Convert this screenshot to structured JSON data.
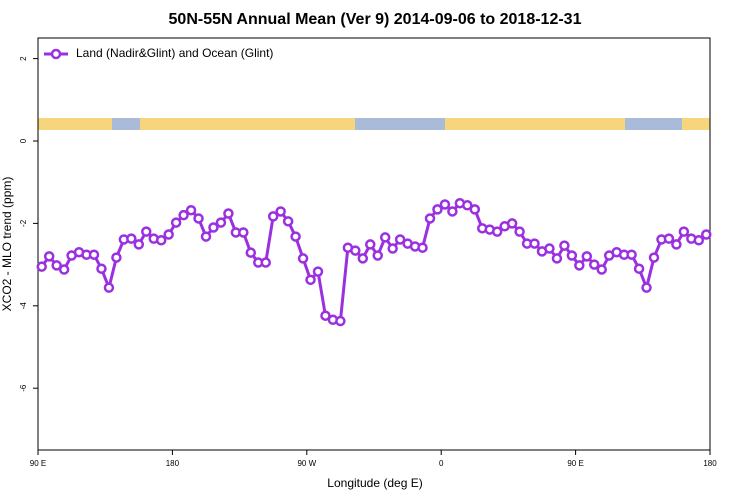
{
  "chart_data": {
    "type": "line",
    "title": "50N-55N Annual Mean (Ver 9)   2014-09-06 to 2018-12-31",
    "x_label": "Longitude (deg E)",
    "y_label": "XCO2 - MLO trend (ppm)",
    "xlim": [
      90,
      540
    ],
    "xticks": [
      {
        "value": 90,
        "label": "90 E"
      },
      {
        "value": 180,
        "label": "180"
      },
      {
        "value": 270,
        "label": "90 W"
      },
      {
        "value": 360,
        "label": "0"
      },
      {
        "value": 450,
        "label": "90 E"
      },
      {
        "value": 540,
        "label": "180"
      }
    ],
    "ylim": [
      -7.5,
      2.5
    ],
    "yticks": [
      -6,
      -4,
      -2,
      0,
      2
    ],
    "legend": "top-left",
    "x": [
      92.5,
      97.5,
      102.5,
      107.5,
      112.5,
      117.5,
      122.5,
      127.5,
      132.5,
      137.5,
      142.5,
      147.5,
      152.5,
      157.5,
      162.5,
      167.5,
      172.5,
      177.5,
      182.5,
      187.5,
      192.5,
      197.5,
      202.5,
      207.5,
      212.5,
      217.5,
      222.5,
      227.5,
      232.5,
      237.5,
      242.5,
      247.5,
      252.5,
      257.5,
      262.5,
      267.5,
      272.5,
      277.5,
      282.5,
      287.5,
      292.5,
      297.5,
      302.5,
      307.5,
      312.5,
      317.5,
      322.5,
      327.5,
      332.5,
      337.5,
      342.5,
      347.5,
      352.5,
      357.5,
      362.5,
      367.5,
      372.5,
      377.5,
      382.5,
      387.5,
      392.5,
      397.5,
      402.5,
      407.5,
      412.5,
      417.5,
      422.5,
      427.5,
      432.5,
      437.5,
      442.5,
      447.5,
      452.5,
      457.5,
      462.5,
      467.5,
      472.5,
      477.5,
      482.5,
      487.5,
      492.5,
      497.5,
      502.5,
      507.5,
      512.5,
      517.5,
      522.5,
      527.5,
      532.5,
      537.5
    ],
    "series": [
      {
        "name": "Land (Nadir&Glint) and Ocean (Glint)",
        "color": "#9b30e0",
        "values": [
          -3.05,
          -2.8,
          -3.02,
          -3.12,
          -2.78,
          -2.7,
          -2.76,
          -2.76,
          -3.1,
          -3.56,
          -2.83,
          -2.39,
          -2.37,
          -2.51,
          -2.2,
          -2.37,
          -2.41,
          -2.27,
          -1.98,
          -1.8,
          -1.68,
          -1.88,
          -2.32,
          -2.1,
          -1.98,
          -1.76,
          -2.22,
          -2.22,
          -2.71,
          -2.95,
          -2.95,
          -1.83,
          -1.71,
          -1.95,
          -2.32,
          -2.85,
          -3.37,
          -3.17,
          -4.24,
          -4.34,
          -4.37,
          -2.59,
          -2.66,
          -2.85,
          -2.51,
          -2.78,
          -2.34,
          -2.61,
          -2.39,
          -2.49,
          -2.56,
          -2.59,
          -1.88,
          -1.66,
          -1.54,
          -1.71,
          -1.51,
          -1.56,
          -1.66,
          -2.12,
          -2.15,
          -2.2,
          -2.07,
          -2.0,
          -2.2,
          -2.49,
          -2.49,
          -2.68,
          -2.61,
          -2.85,
          -2.54,
          -2.78,
          -3.02,
          -2.8,
          -3.0,
          -3.12,
          -2.78,
          -2.7,
          -2.76,
          -2.76,
          -3.1,
          -3.56,
          -2.83,
          -2.39,
          -2.37,
          -2.51,
          -2.2,
          -2.37,
          -2.41,
          -2.27
        ]
      }
    ]
  }
}
